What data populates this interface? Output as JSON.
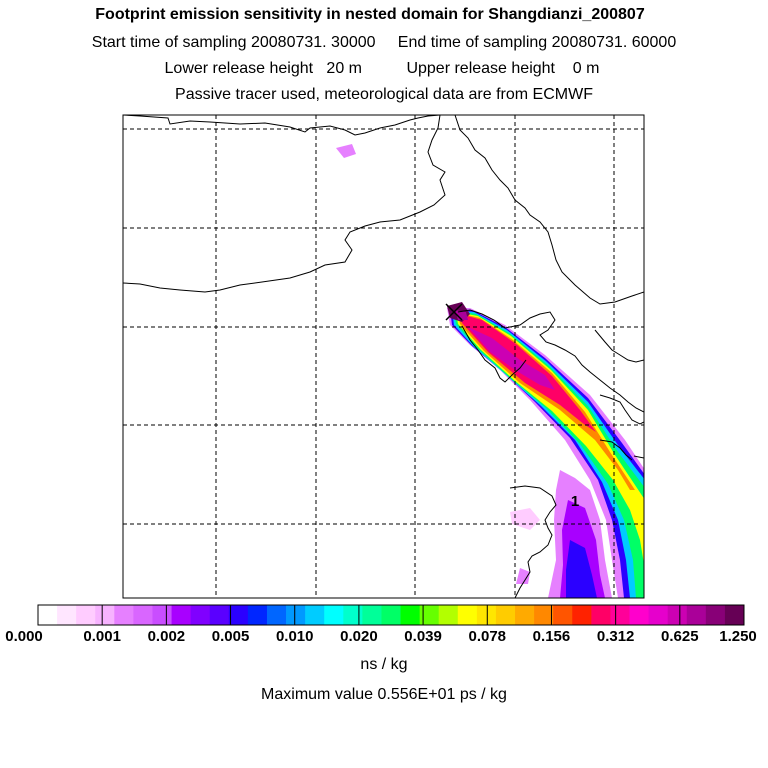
{
  "header": {
    "title": "Footprint emission sensitivity in nested domain for Shangdianzi_200807",
    "start_label": "Start time of sampling",
    "start_value": "20080731. 30000",
    "end_label": "End time of sampling",
    "end_value": "20080731. 60000",
    "lower_label": "Lower release height",
    "lower_value": "20 m",
    "upper_label": "Upper release height",
    "upper_value": "0 m",
    "note": "Passive tracer used, meteorological data are from ECMWF"
  },
  "map": {
    "receptor_marker": "receptor-x-marker",
    "annotation": "1"
  },
  "colorbar": {
    "labels": [
      "0.000",
      "0.001",
      "0.002",
      "0.005",
      "0.010",
      "0.020",
      "0.039",
      "0.078",
      "0.156",
      "0.312",
      "0.625",
      "1.250"
    ],
    "units": "ns / kg",
    "colors": [
      "#ffffff",
      "#ffe6ff",
      "#ffccff",
      "#f7b3ff",
      "#e680ff",
      "#d966ff",
      "#c94dff",
      "#a800ff",
      "#8000ff",
      "#5a00ff",
      "#2b00ff",
      "#0026ff",
      "#0066ff",
      "#0099ff",
      "#00ccff",
      "#00ffff",
      "#00ffcc",
      "#00ff99",
      "#00ff66",
      "#00ff00",
      "#66ff00",
      "#b3ff00",
      "#ffff00",
      "#ffe600",
      "#ffcc00",
      "#ffaa00",
      "#ff8800",
      "#ff5500",
      "#ff2200",
      "#ff0066",
      "#ff0099",
      "#ff00cc",
      "#e600cc",
      "#cc00b3",
      "#aa0099",
      "#880077",
      "#660055"
    ]
  },
  "footer": {
    "max_label": "Maximum value",
    "max_value": "0.556E+01 ps / kg"
  }
}
